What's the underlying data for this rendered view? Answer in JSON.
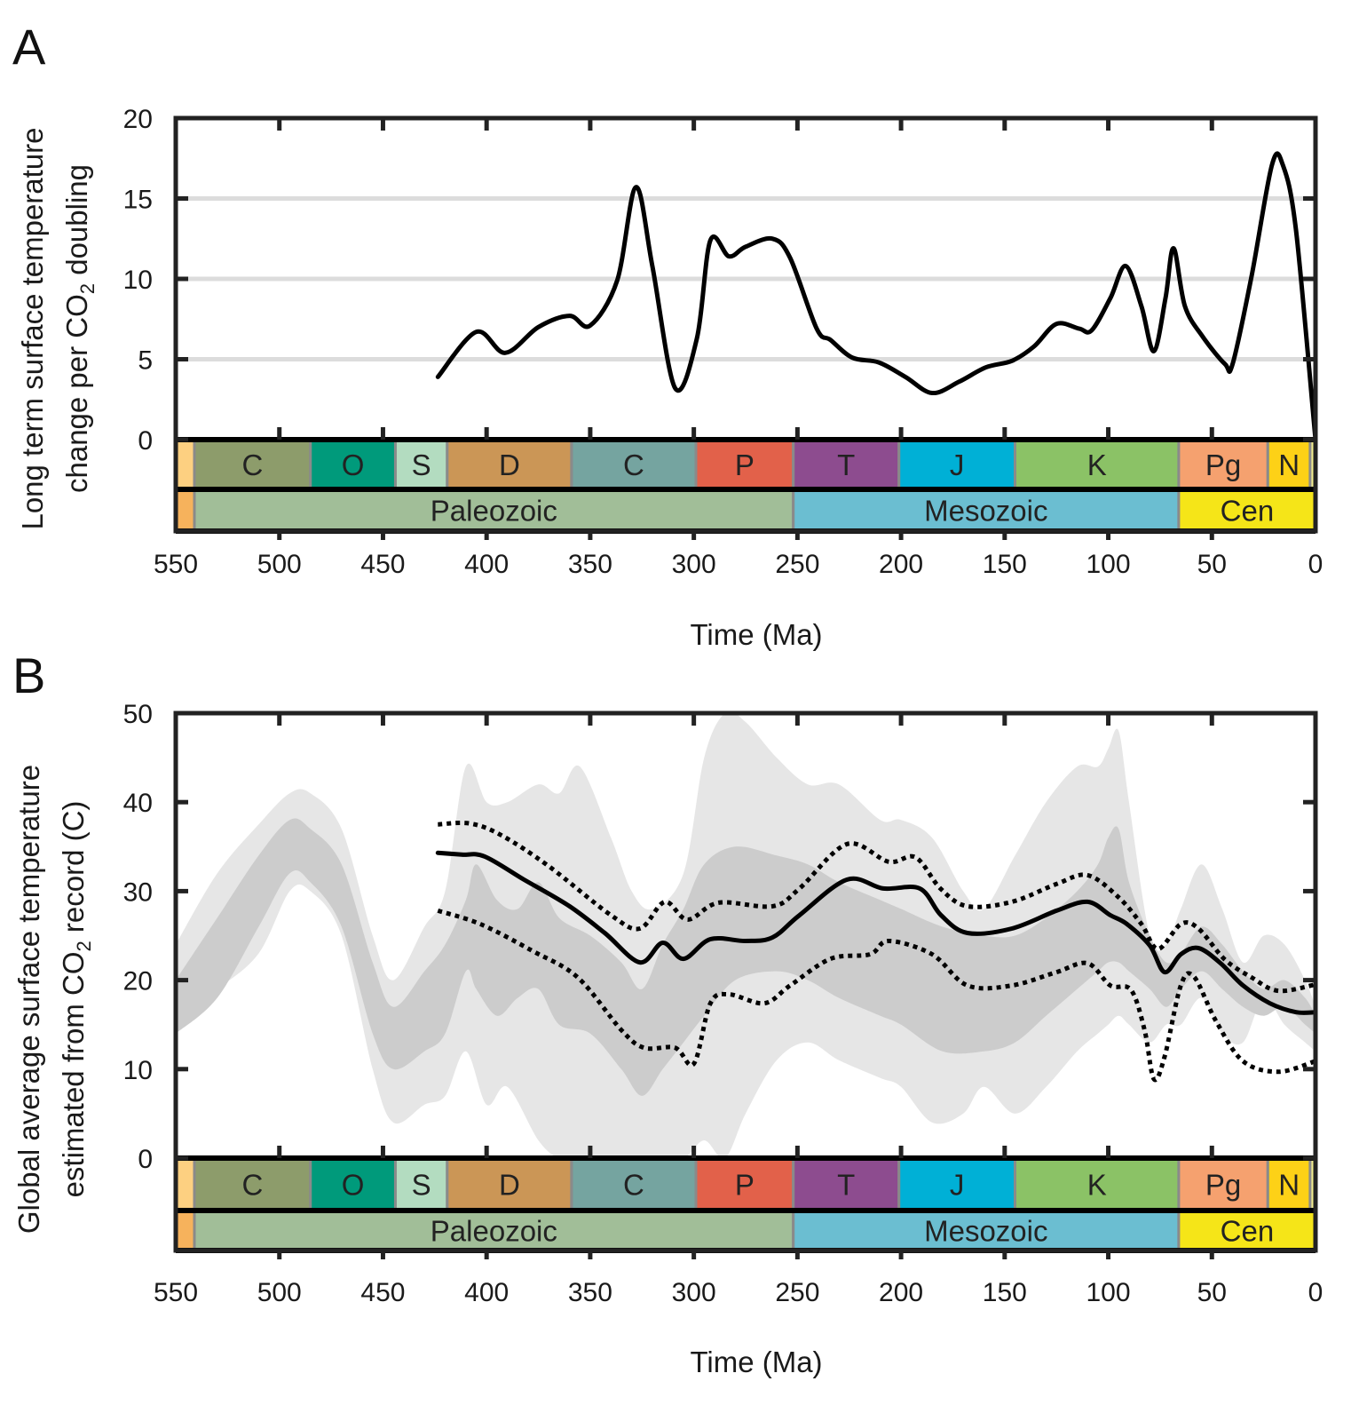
{
  "figure": {
    "panels": [
      "A",
      "B"
    ]
  },
  "geologic_scale": {
    "periods": [
      {
        "label": "",
        "start": 550,
        "end": 541,
        "color": "#FDD081"
      },
      {
        "label": "C",
        "start": 541,
        "end": 485,
        "color": "#8D9C6B"
      },
      {
        "label": "O",
        "start": 485,
        "end": 444,
        "color": "#009A7B"
      },
      {
        "label": "S",
        "start": 444,
        "end": 419,
        "color": "#B3DCC0"
      },
      {
        "label": "D",
        "start": 419,
        "end": 359,
        "color": "#CB9656"
      },
      {
        "label": "C",
        "start": 359,
        "end": 299,
        "color": "#75A4A0"
      },
      {
        "label": "P",
        "start": 299,
        "end": 252,
        "color": "#E2614A"
      },
      {
        "label": "T",
        "start": 252,
        "end": 201,
        "color": "#8D4C8F"
      },
      {
        "label": "J",
        "start": 201,
        "end": 145,
        "color": "#00B0D6"
      },
      {
        "label": "K",
        "start": 145,
        "end": 66,
        "color": "#8BC266"
      },
      {
        "label": "Pg",
        "start": 66,
        "end": 23,
        "color": "#F5A16F"
      },
      {
        "label": "N",
        "start": 23,
        "end": 2.6,
        "color": "#FDD117"
      },
      {
        "label": "",
        "start": 2.6,
        "end": 0,
        "color": "#F2ED8E"
      }
    ],
    "eras": [
      {
        "label": "",
        "start": 550,
        "end": 541,
        "color": "#F6B25C"
      },
      {
        "label": "Paleozoic",
        "start": 541,
        "end": 252,
        "color": "#A1BE98"
      },
      {
        "label": "Mesozoic",
        "start": 252,
        "end": 66,
        "color": "#6BBED1"
      },
      {
        "label": "Cen",
        "start": 66,
        "end": 0,
        "color": "#F5E518"
      }
    ]
  },
  "chart_data": [
    {
      "panel": "A",
      "type": "line",
      "title": "",
      "xlabel": "Time (Ma)",
      "ylabel_line1": "Long term surface temperature",
      "ylabel_line2_pre": "change per CO",
      "ylabel_line2_sub": "2",
      "ylabel_line2_post": " doubling",
      "xlim": [
        550,
        0
      ],
      "ylim": [
        0,
        20
      ],
      "xticks": [
        550,
        500,
        450,
        400,
        350,
        300,
        250,
        200,
        150,
        100,
        50,
        0
      ],
      "yticks": [
        0,
        5,
        10,
        15,
        20
      ],
      "grid": "horizontal",
      "series": [
        {
          "name": "sensitivity",
          "style": "solid",
          "color": "#000000",
          "x": [
            423.5,
            405,
            391,
            375,
            360,
            350,
            337,
            328,
            320,
            309,
            298.5,
            292,
            283,
            275,
            262,
            253.5,
            240.7,
            234,
            223.5,
            210.7,
            197.9,
            185,
            172,
            159,
            146.5,
            135.8,
            125,
            114,
            108,
            99,
            91.6,
            84,
            78,
            72.4,
            68.5,
            63,
            54.4,
            43.7,
            40,
            30.8,
            21,
            15.8,
            9.4,
            0
          ],
          "y": [
            3.9,
            6.7,
            5.4,
            7.0,
            7.7,
            7.1,
            9.9,
            15.7,
            10.8,
            3.2,
            6.3,
            12.4,
            11.4,
            12.0,
            12.5,
            11.3,
            6.9,
            6.2,
            5.1,
            4.8,
            3.9,
            2.9,
            3.6,
            4.5,
            4.9,
            5.8,
            7.2,
            6.9,
            6.8,
            8.8,
            10.8,
            8.3,
            5.5,
            8.8,
            11.9,
            8.3,
            6.4,
            4.7,
            4.7,
            10.2,
            17.1,
            17.1,
            13.0,
            0
          ]
        }
      ]
    },
    {
      "panel": "B",
      "type": "line",
      "title": "",
      "xlabel": "Time (Ma)",
      "ylabel_line1": "Global average surface temperature",
      "ylabel_line2_pre": "estimated from CO",
      "ylabel_line2_sub": "2",
      "ylabel_line2_post": " record (C)",
      "xlim": [
        550,
        0
      ],
      "ylim": [
        0,
        50
      ],
      "xticks": [
        550,
        500,
        450,
        400,
        350,
        300,
        250,
        200,
        150,
        100,
        50,
        0
      ],
      "yticks": [
        0,
        10,
        20,
        30,
        40,
        50
      ],
      "grid": "none",
      "bands": [
        {
          "name": "outer-range",
          "color": "#E6E6E6",
          "x": [
            550,
            530,
            510,
            495,
            485,
            470,
            455,
            445,
            430,
            420,
            410,
            400,
            390,
            375,
            365,
            355,
            340,
            330,
            320,
            305,
            295,
            285,
            275,
            260,
            245,
            230,
            210,
            200,
            185,
            170,
            160,
            145,
            130,
            115,
            105,
            100,
            95,
            90,
            80,
            72,
            65,
            55,
            45,
            35,
            25,
            15,
            5,
            0
          ],
          "upper": [
            24,
            32,
            37.5,
            41,
            41,
            37,
            25,
            20,
            26,
            30,
            44,
            40,
            40,
            42,
            41,
            44,
            36,
            30,
            28,
            32,
            45,
            50,
            49,
            45,
            42,
            42,
            38,
            38,
            36,
            30,
            28,
            34,
            40,
            44,
            44,
            46,
            48,
            40,
            25,
            24,
            28,
            33,
            28,
            22,
            25,
            24,
            20,
            17
          ],
          "lower": [
            16,
            19,
            23,
            30,
            30,
            25,
            10,
            4,
            6,
            7,
            12,
            6,
            8,
            2,
            0,
            0,
            0,
            0,
            0,
            0,
            2,
            0,
            5,
            11,
            13,
            11,
            9,
            8,
            4,
            5,
            8,
            5,
            8,
            12,
            14,
            15,
            16,
            15,
            13,
            15,
            15,
            18,
            14,
            13,
            18,
            15,
            13,
            12
          ]
        },
        {
          "name": "inner-range",
          "color": "#CCCCCC",
          "x": [
            550,
            530,
            510,
            495,
            485,
            470,
            455,
            445,
            430,
            420,
            410,
            405,
            395,
            385,
            375,
            365,
            350,
            335,
            325,
            315,
            305,
            295,
            280,
            260,
            245,
            230,
            210,
            200,
            180,
            160,
            145,
            130,
            115,
            105,
            100,
            95,
            90,
            80,
            72,
            65,
            55,
            45,
            35,
            25,
            15,
            5,
            0
          ],
          "upper": [
            20,
            27,
            34,
            38,
            37,
            33,
            22,
            17,
            21,
            24,
            29,
            33,
            29,
            28,
            31,
            27,
            25,
            22,
            19,
            24,
            28,
            33,
            35,
            34,
            33,
            31,
            29,
            28,
            26,
            25,
            25,
            27,
            30,
            33,
            36,
            37,
            31,
            25,
            22,
            23,
            26,
            24,
            21,
            19,
            20,
            18,
            16
          ],
          "lower": [
            14,
            18,
            26,
            32,
            31,
            26,
            14,
            10,
            12,
            14,
            21,
            19,
            16,
            18,
            19,
            15,
            14,
            10,
            7,
            10,
            13,
            16,
            20,
            21,
            20,
            18,
            16,
            15,
            12,
            12,
            13,
            16,
            19,
            21,
            22,
            22,
            21,
            19,
            17,
            19,
            21,
            19,
            17,
            16,
            17,
            15,
            14
          ]
        }
      ],
      "series": [
        {
          "name": "mean",
          "style": "solid",
          "color": "#000000",
          "x": [
            423.5,
            412,
            401,
            382,
            360,
            343,
            326,
            315,
            305,
            292,
            275,
            262,
            249,
            226,
            208.6,
            191,
            180.7,
            168,
            146.5,
            125,
            110,
            99,
            91,
            80,
            72.8,
            65,
            56.5,
            45.8,
            35,
            22,
            9.4,
            0
          ],
          "y": [
            34.3,
            34.1,
            33.9,
            31.3,
            28.3,
            25.3,
            22.0,
            24.2,
            22.4,
            24.6,
            24.4,
            24.8,
            27.3,
            31.3,
            30.3,
            30.3,
            27.3,
            25.3,
            25.8,
            27.8,
            28.8,
            27.3,
            26.3,
            23.9,
            20.9,
            22.9,
            23.6,
            21.9,
            19.4,
            17.4,
            16.4,
            16.4
          ]
        },
        {
          "name": "upper-bound",
          "style": "dotted",
          "color": "#000000",
          "x": [
            423.5,
            408,
            393,
            370,
            340,
            326,
            314,
            303,
            288,
            262,
            249,
            226,
            206,
            193,
            181,
            168,
            146.5,
            125,
            110,
            95,
            84,
            76,
            65,
            56.5,
            43.7,
            30.8,
            18,
            0
          ],
          "y": [
            37.5,
            37.6,
            36.3,
            32.8,
            27.3,
            25.8,
            28.8,
            26.8,
            28.7,
            28.3,
            30.3,
            35.3,
            33.3,
            33.8,
            30.3,
            28.3,
            28.8,
            30.8,
            31.8,
            29.3,
            26.3,
            23.5,
            26.3,
            25.8,
            22.3,
            20.3,
            18.8,
            19.5
          ]
        },
        {
          "name": "lower-bound",
          "style": "dotted",
          "color": "#000000",
          "x": [
            423.5,
            403,
            378,
            356,
            335,
            324,
            309,
            300,
            292,
            283,
            266,
            253.5,
            234,
            215,
            206,
            185,
            168,
            146.5,
            125,
            110,
            99,
            89,
            82.5,
            78,
            72.8,
            65,
            58.7,
            48,
            35,
            18,
            0
          ],
          "y": [
            27.8,
            26.3,
            23.3,
            20.3,
            14.4,
            12.4,
            12.4,
            10.6,
            17.4,
            18.4,
            17.4,
            19.4,
            22.4,
            22.9,
            24.4,
            22.9,
            19.4,
            19.4,
            20.9,
            21.9,
            19.4,
            18.9,
            14.4,
            8.9,
            11.4,
            19.4,
            20.4,
            15.4,
            10.9,
            9.7,
            10.9
          ]
        }
      ]
    }
  ]
}
